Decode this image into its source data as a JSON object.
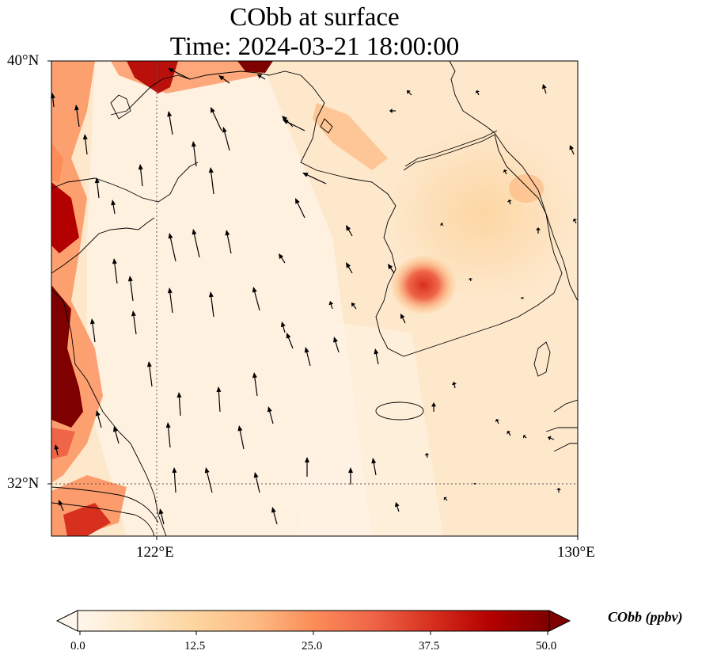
{
  "title": {
    "line1": "CObb at surface",
    "line2": "Time: 2024-03-21 18:00:00"
  },
  "axes": {
    "lat_labels": [
      "40°N",
      "32°N"
    ],
    "lon_labels": [
      "122°E",
      "130°E"
    ],
    "lon_range": [
      120.0,
      130.0
    ],
    "lat_range": [
      31.0,
      40.0
    ],
    "gridlines": "dotted at 122°E and 32°N"
  },
  "colorbar": {
    "label": "CObb (ppbv)",
    "ticks": [
      "0.0",
      "12.5",
      "25.0",
      "37.5",
      "50.0"
    ],
    "range": [
      0,
      50
    ],
    "colormap": "OrRd",
    "extend": "both",
    "colors": [
      "#fff7ec",
      "#fee8c8",
      "#fdd49e",
      "#fdbb84",
      "#fc8d59",
      "#ef6548",
      "#d7301f",
      "#b30000",
      "#7f0000"
    ]
  },
  "field": {
    "description_units": "ppbv",
    "background_value": 6,
    "hotspots": [
      {
        "name": "west-coast-strip",
        "value": 45
      },
      {
        "name": "north-plume",
        "value": 38
      },
      {
        "name": "korea-west-coast",
        "value": 32
      },
      {
        "name": "korea-northeast",
        "value": 18
      },
      {
        "name": "shanghai-area",
        "value": 35
      }
    ]
  },
  "wind": {
    "direction": "mostly northward (southerly winds)",
    "arrow_color": "#000000"
  }
}
